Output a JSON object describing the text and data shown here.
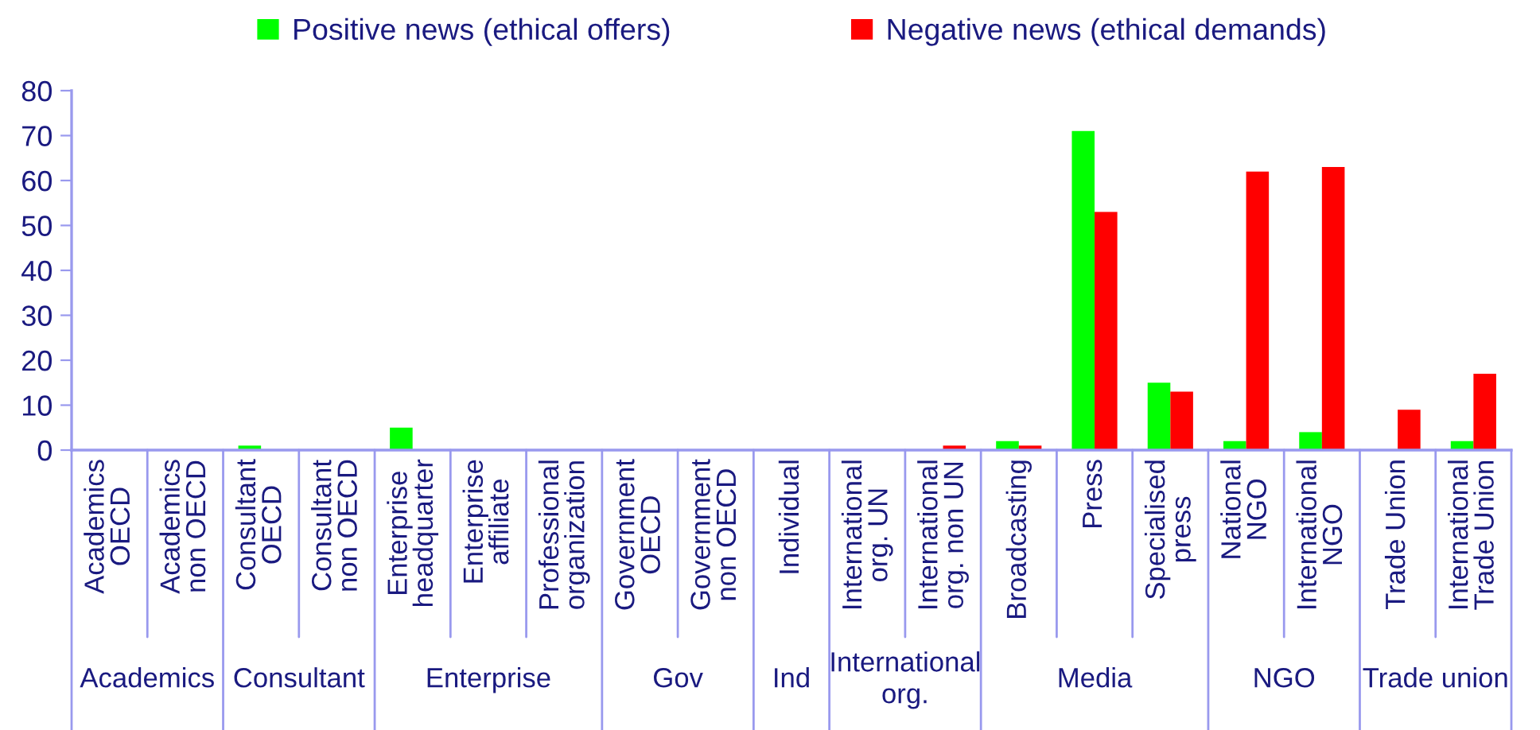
{
  "chart_data": {
    "type": "bar",
    "categories": [
      "Academics\nOECD",
      "Academics\nnon OECD",
      "Consultant\nOECD",
      "Consultant\nnon OECD",
      "Enterprise\nheadquarter",
      "Enterprise\naffiliate",
      "Professional\norganization",
      "Government\nOECD",
      "Government\nnon OECD",
      "Individual",
      "International\norg. UN",
      "International\norg. non UN",
      "Broadcasting",
      "Press",
      "Specialised\npress",
      "National\nNGO",
      "International\nNGO",
      "Trade Union",
      "International\nTrade Union"
    ],
    "series": [
      {
        "name": "Positive news (ethical offers)",
        "color": "#00ff00",
        "values": [
          0,
          0,
          1,
          0,
          5,
          0,
          0,
          0,
          0,
          0,
          0,
          0,
          2,
          71,
          15,
          2,
          4,
          0,
          2
        ]
      },
      {
        "name": "Negative news (ethical demands)",
        "color": "#ff0000",
        "values": [
          0,
          0,
          0,
          0,
          0,
          0,
          0,
          0,
          0,
          0,
          0,
          1,
          1,
          53,
          13,
          62,
          63,
          9,
          17
        ]
      }
    ],
    "ylim": [
      0,
      80
    ],
    "yticks": [
      0,
      10,
      20,
      30,
      40,
      50,
      60,
      70,
      80
    ],
    "grid": false,
    "legend": "top",
    "annotations": [
      "Academics",
      "Consultant",
      "Enterprise",
      "Gov",
      "Ind",
      "International\norg.",
      "Media",
      "NGO",
      "Trade union"
    ]
  }
}
